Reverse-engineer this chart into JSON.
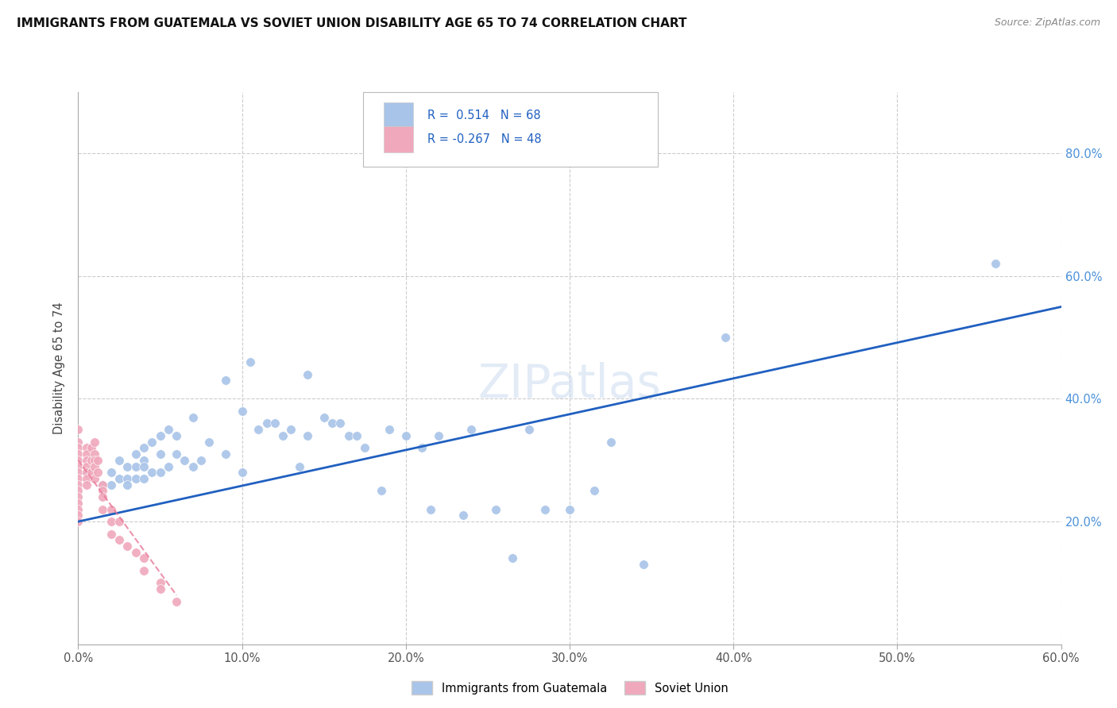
{
  "title": "IMMIGRANTS FROM GUATEMALA VS SOVIET UNION DISABILITY AGE 65 TO 74 CORRELATION CHART",
  "source": "Source: ZipAtlas.com",
  "ylabel": "Disability Age 65 to 74",
  "xlim": [
    0.0,
    0.6
  ],
  "ylim": [
    0.0,
    0.9
  ],
  "xtick_vals": [
    0.0,
    0.1,
    0.2,
    0.3,
    0.4,
    0.5,
    0.6
  ],
  "xtick_labels": [
    "0.0%",
    "10.0%",
    "20.0%",
    "30.0%",
    "40.0%",
    "50.0%",
    "60.0%"
  ],
  "ytick_vals": [
    0.2,
    0.4,
    0.6,
    0.8
  ],
  "ytick_labels": [
    "20.0%",
    "40.0%",
    "60.0%",
    "80.0%"
  ],
  "legend_r1_val": "0.514",
  "legend_r2_val": "-0.267",
  "legend_n1": "68",
  "legend_n2": "48",
  "color_guatemala": "#a8c4e8",
  "color_soviet": "#f0a8bc",
  "color_line_guatemala": "#2060c0",
  "color_line_soviet": "#e87898",
  "watermark": "ZIPatlas",
  "guatemala_line_x0": 0.0,
  "guatemala_line_y0": 0.2,
  "guatemala_line_x1": 0.6,
  "guatemala_line_y1": 0.55,
  "soviet_line_x0": 0.0,
  "soviet_line_y0": 0.3,
  "soviet_line_x1": 0.06,
  "soviet_line_y1": 0.08,
  "guatemala_scatter_x": [
    0.005,
    0.01,
    0.015,
    0.02,
    0.02,
    0.025,
    0.025,
    0.03,
    0.03,
    0.03,
    0.035,
    0.035,
    0.035,
    0.04,
    0.04,
    0.04,
    0.04,
    0.045,
    0.045,
    0.05,
    0.05,
    0.05,
    0.055,
    0.055,
    0.06,
    0.06,
    0.065,
    0.07,
    0.07,
    0.075,
    0.08,
    0.09,
    0.09,
    0.1,
    0.1,
    0.105,
    0.11,
    0.115,
    0.12,
    0.125,
    0.13,
    0.135,
    0.14,
    0.14,
    0.15,
    0.155,
    0.16,
    0.165,
    0.17,
    0.175,
    0.185,
    0.19,
    0.2,
    0.21,
    0.215,
    0.22,
    0.235,
    0.24,
    0.255,
    0.265,
    0.275,
    0.285,
    0.3,
    0.315,
    0.325,
    0.345,
    0.395,
    0.56
  ],
  "guatemala_scatter_y": [
    0.28,
    0.3,
    0.26,
    0.28,
    0.26,
    0.3,
    0.27,
    0.29,
    0.27,
    0.26,
    0.31,
    0.29,
    0.27,
    0.32,
    0.3,
    0.29,
    0.27,
    0.33,
    0.28,
    0.34,
    0.31,
    0.28,
    0.35,
    0.29,
    0.34,
    0.31,
    0.3,
    0.37,
    0.29,
    0.3,
    0.33,
    0.43,
    0.31,
    0.38,
    0.28,
    0.46,
    0.35,
    0.36,
    0.36,
    0.34,
    0.35,
    0.29,
    0.44,
    0.34,
    0.37,
    0.36,
    0.36,
    0.34,
    0.34,
    0.32,
    0.25,
    0.35,
    0.34,
    0.32,
    0.22,
    0.34,
    0.21,
    0.35,
    0.22,
    0.14,
    0.35,
    0.22,
    0.22,
    0.25,
    0.33,
    0.13,
    0.5,
    0.62
  ],
  "soviet_scatter_x": [
    0.0,
    0.0,
    0.0,
    0.0,
    0.0,
    0.0,
    0.0,
    0.0,
    0.0,
    0.0,
    0.0,
    0.0,
    0.0,
    0.0,
    0.0,
    0.005,
    0.005,
    0.005,
    0.005,
    0.005,
    0.005,
    0.005,
    0.008,
    0.008,
    0.008,
    0.01,
    0.01,
    0.01,
    0.01,
    0.01,
    0.012,
    0.012,
    0.015,
    0.015,
    0.015,
    0.015,
    0.02,
    0.02,
    0.02,
    0.025,
    0.025,
    0.03,
    0.035,
    0.04,
    0.04,
    0.05,
    0.05,
    0.06
  ],
  "soviet_scatter_y": [
    0.35,
    0.33,
    0.32,
    0.31,
    0.3,
    0.29,
    0.28,
    0.27,
    0.26,
    0.25,
    0.24,
    0.23,
    0.22,
    0.21,
    0.2,
    0.32,
    0.31,
    0.3,
    0.29,
    0.28,
    0.27,
    0.26,
    0.32,
    0.3,
    0.28,
    0.33,
    0.31,
    0.3,
    0.29,
    0.27,
    0.3,
    0.28,
    0.26,
    0.25,
    0.24,
    0.22,
    0.22,
    0.2,
    0.18,
    0.2,
    0.17,
    0.16,
    0.15,
    0.14,
    0.12,
    0.1,
    0.09,
    0.07
  ]
}
